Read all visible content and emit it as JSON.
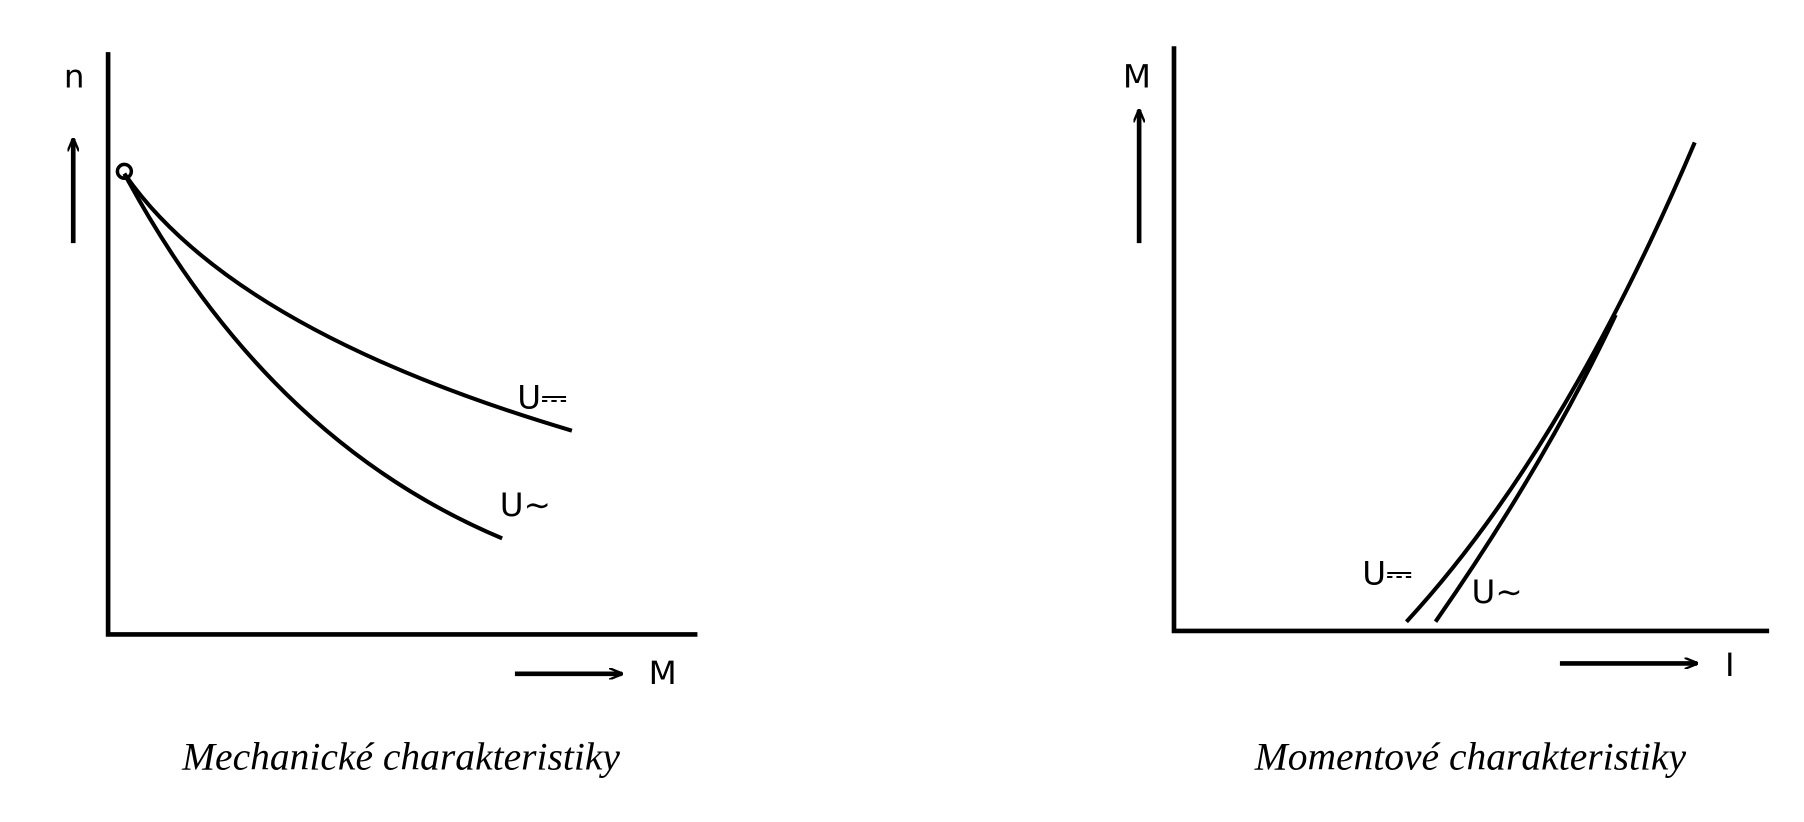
{
  "left": {
    "y_axis_label": "n",
    "x_axis_label": "M",
    "curves": [
      {
        "label": "U⎓"
      },
      {
        "label": "U∼"
      }
    ],
    "caption": "Mechanické charakteristiky"
  },
  "right": {
    "y_axis_label": "M",
    "x_axis_label": "I",
    "curves": [
      {
        "label": "U⎓"
      },
      {
        "label": "U∼"
      }
    ],
    "caption": "Momentové charakteristiky"
  }
}
